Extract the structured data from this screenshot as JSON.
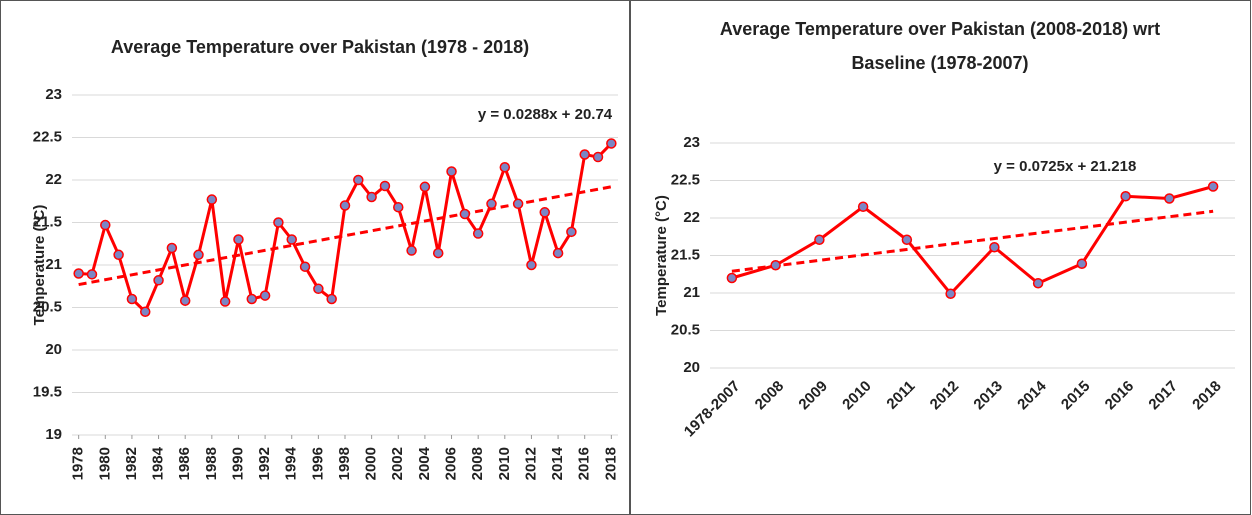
{
  "chart_data": [
    {
      "type": "line",
      "title": "Average Temperature over Pakistan (1978 - 2018)",
      "ylabel": "Temperature (°C)",
      "x": [
        1978,
        1979,
        1980,
        1981,
        1982,
        1983,
        1984,
        1985,
        1986,
        1987,
        1988,
        1989,
        1990,
        1991,
        1992,
        1993,
        1994,
        1995,
        1996,
        1997,
        1998,
        1999,
        2000,
        2001,
        2002,
        2003,
        2004,
        2005,
        2006,
        2007,
        2008,
        2009,
        2010,
        2011,
        2012,
        2013,
        2014,
        2015,
        2016,
        2017,
        2018
      ],
      "series": [
        {
          "color": "#ff0000",
          "marker_color": "#7b86c4",
          "values": [
            20.9,
            20.89,
            21.47,
            21.12,
            20.6,
            20.45,
            20.82,
            21.2,
            20.58,
            21.12,
            21.77,
            20.57,
            21.3,
            20.6,
            20.64,
            21.5,
            21.3,
            20.98,
            20.72,
            20.6,
            21.7,
            22.0,
            21.8,
            21.93,
            21.68,
            21.17,
            21.92,
            21.14,
            22.1,
            21.6,
            21.37,
            21.72,
            22.15,
            21.72,
            21.0,
            21.62,
            21.14,
            21.39,
            22.3,
            22.27,
            22.43
          ]
        }
      ],
      "trendline": {
        "label": "y = 0.0288x + 20.74",
        "values": [
          20.77,
          21.92
        ],
        "color": "#ff0000"
      },
      "xlim": [
        1977.5,
        2018.5
      ],
      "xticks": [
        1978,
        1980,
        1982,
        1984,
        1986,
        1988,
        1990,
        1992,
        1994,
        1996,
        1998,
        2000,
        2002,
        2004,
        2006,
        2008,
        2010,
        2012,
        2014,
        2016,
        2018
      ],
      "ylim": [
        19,
        23
      ],
      "yticks": [
        19,
        19.5,
        20,
        20.5,
        21,
        21.5,
        22,
        22.5,
        23
      ],
      "grid": true
    },
    {
      "type": "line",
      "title": [
        "Average Temperature over Pakistan (2008-2018) wrt",
        "Baseline (1978-2007)"
      ],
      "ylabel": "Temperature (°C)",
      "categories": [
        "1978-2007",
        "2008",
        "2009",
        "2010",
        "2011",
        "2012",
        "2013",
        "2014",
        "2015",
        "2016",
        "2017",
        "2018"
      ],
      "series": [
        {
          "color": "#ff0000",
          "marker_color": "#7b86c4",
          "values": [
            21.2,
            21.37,
            21.71,
            22.15,
            21.71,
            20.99,
            21.61,
            21.13,
            21.39,
            22.29,
            22.26,
            22.42
          ]
        }
      ],
      "trendline": {
        "label": "y = 0.0725x + 21.218",
        "values": [
          21.29,
          22.09
        ],
        "color": "#ff0000"
      },
      "ylim": [
        20,
        23
      ],
      "yticks": [
        20,
        20.5,
        21,
        21.5,
        22,
        22.5,
        23
      ],
      "grid": true
    }
  ]
}
